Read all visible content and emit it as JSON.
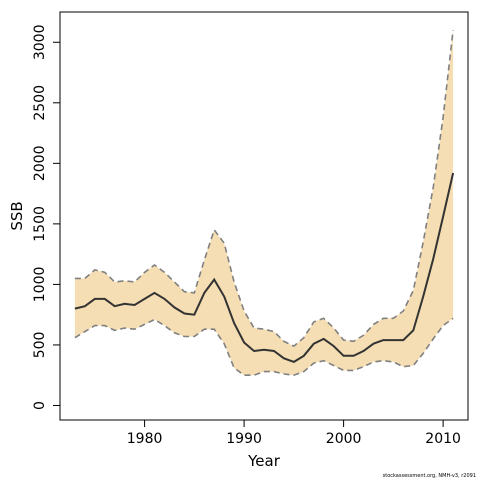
{
  "chart_data": {
    "type": "area",
    "xlabel": "Year",
    "ylabel": "SSB",
    "xlim": [
      1971.5,
      2012.5
    ],
    "ylim": [
      -120,
      3250
    ],
    "x_ticks": [
      1980,
      1990,
      2000,
      2010
    ],
    "y_ticks": [
      0,
      500,
      1000,
      1500,
      2000,
      2500,
      3000
    ],
    "grid": false,
    "credit": "stockassessment.org, NMH-v3, r2091",
    "colors": {
      "band": "#f5deb3",
      "median": "#333333",
      "bounds": "#808080"
    },
    "x": [
      1973,
      1974,
      1975,
      1976,
      1977,
      1978,
      1979,
      1980,
      1981,
      1982,
      1983,
      1984,
      1985,
      1986,
      1987,
      1988,
      1989,
      1990,
      1991,
      1992,
      1993,
      1994,
      1995,
      1996,
      1997,
      1998,
      1999,
      2000,
      2001,
      2002,
      2003,
      2004,
      2005,
      2006,
      2007,
      2008,
      2009,
      2010,
      2011
    ],
    "series": [
      {
        "name": "lower",
        "values": [
          560,
          610,
          660,
          660,
          620,
          640,
          630,
          670,
          710,
          660,
          600,
          570,
          570,
          630,
          630,
          510,
          310,
          250,
          250,
          280,
          280,
          260,
          250,
          280,
          350,
          370,
          330,
          290,
          290,
          320,
          360,
          370,
          360,
          320,
          330,
          430,
          550,
          660,
          720
        ]
      },
      {
        "name": "estimate",
        "values": [
          800,
          820,
          880,
          880,
          820,
          840,
          830,
          880,
          930,
          880,
          810,
          760,
          750,
          930,
          1040,
          900,
          680,
          520,
          450,
          460,
          450,
          390,
          360,
          410,
          510,
          550,
          490,
          410,
          410,
          450,
          510,
          540,
          540,
          540,
          620,
          900,
          1210,
          1560,
          1920
        ]
      },
      {
        "name": "upper",
        "values": [
          1050,
          1050,
          1120,
          1100,
          1020,
          1030,
          1020,
          1100,
          1160,
          1100,
          1020,
          940,
          930,
          1200,
          1450,
          1340,
          1020,
          780,
          640,
          630,
          610,
          530,
          490,
          560,
          690,
          720,
          640,
          540,
          530,
          580,
          670,
          720,
          720,
          780,
          950,
          1350,
          1800,
          2380,
          3100
        ]
      }
    ]
  }
}
